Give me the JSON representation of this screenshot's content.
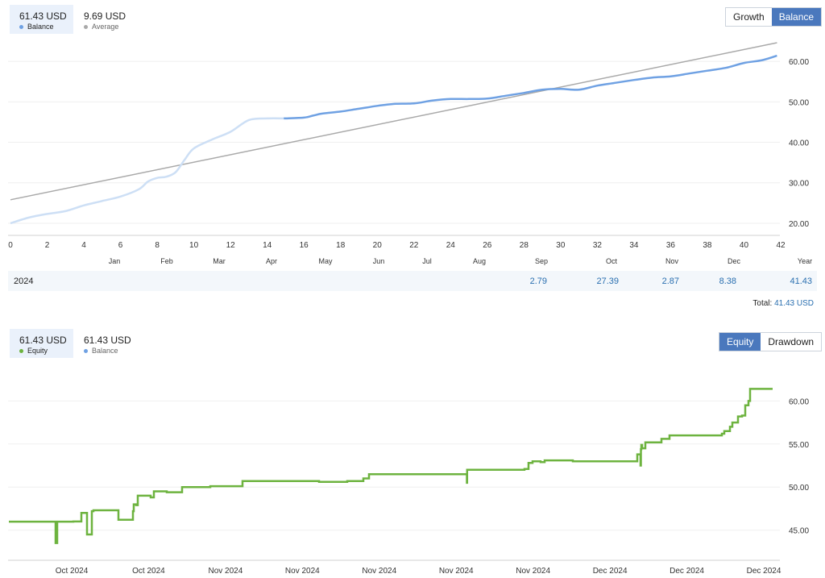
{
  "top_panel": {
    "legend": [
      {
        "value": "61.43 USD",
        "label": "Balance",
        "color": "#6fa1e3",
        "active": true
      },
      {
        "value": "9.69 USD",
        "label": "Average",
        "color": "#a9a9a9",
        "active": false
      }
    ],
    "toggle": [
      {
        "label": "Growth",
        "active": false
      },
      {
        "label": "Balance",
        "active": true
      }
    ]
  },
  "monthly_table": {
    "year_header": "Year",
    "year": "2024",
    "months": [
      "Jan",
      "Feb",
      "Mar",
      "Apr",
      "May",
      "Jun",
      "Jul",
      "Aug",
      "Sep",
      "Oct",
      "Nov",
      "Dec"
    ],
    "values": [
      "",
      "",
      "",
      "",
      "",
      "",
      "",
      "",
      "2.79",
      "27.39",
      "2.87",
      "8.38"
    ],
    "year_total": "41.43",
    "total_label": "Total:",
    "total_value": "41.43 USD"
  },
  "bottom_panel": {
    "legend": [
      {
        "value": "61.43 USD",
        "label": "Equity",
        "color": "#6db33f",
        "active": true
      },
      {
        "value": "61.43 USD",
        "label": "Balance",
        "color": "#6fa1e3",
        "active": false
      }
    ],
    "toggle": [
      {
        "label": "Equity",
        "active": true
      },
      {
        "label": "Drawdown",
        "active": false
      }
    ]
  },
  "chart_data": [
    {
      "type": "line",
      "title": "",
      "xlabel": "",
      "ylabel": "",
      "xlim": [
        0,
        42
      ],
      "ylim": [
        17,
        66
      ],
      "x_ticks": [
        0,
        2,
        4,
        6,
        8,
        10,
        12,
        14,
        16,
        18,
        20,
        22,
        24,
        26,
        28,
        30,
        32,
        34,
        36,
        38,
        40,
        42
      ],
      "y_ticks": [
        "20.00",
        "30.00",
        "40.00",
        "50.00",
        "60.00"
      ],
      "grid": "horizontal",
      "series": [
        {
          "name": "Balance",
          "color": "#6fa1e3",
          "history_color": "#cddff5",
          "history_until_x": 14.9,
          "x": [
            0,
            1,
            2,
            3,
            4,
            5,
            6,
            7,
            7.5,
            8,
            8.5,
            9,
            9.5,
            10,
            11,
            12,
            13,
            14,
            14.9,
            16,
            16.5,
            17,
            18,
            19,
            20,
            21,
            22,
            23,
            24,
            25,
            26,
            27,
            28,
            29,
            30,
            31,
            32,
            33,
            34,
            35,
            36,
            37,
            38,
            39,
            40,
            41,
            41.8
          ],
          "y": [
            20,
            21.4,
            22.3,
            23,
            24.4,
            25.5,
            26.6,
            28.4,
            30.3,
            31.2,
            31.5,
            32.6,
            35.7,
            38.5,
            40.7,
            42.6,
            45.5,
            45.9,
            45.9,
            46.1,
            46.6,
            47.1,
            47.6,
            48.3,
            49,
            49.5,
            49.6,
            50.3,
            50.7,
            50.7,
            50.8,
            51.5,
            52.2,
            53,
            53.2,
            53,
            54,
            54.7,
            55.4,
            56,
            56.3,
            57,
            57.7,
            58.4,
            59.6,
            60.3,
            61.4
          ]
        },
        {
          "name": "Average",
          "color": "#a9a9a9",
          "x": [
            0,
            41.8
          ],
          "y": [
            25.8,
            64.6
          ]
        }
      ]
    },
    {
      "type": "line",
      "title": "",
      "xlabel": "",
      "ylabel": "",
      "ylim": [
        41.5,
        63.5
      ],
      "y_ticks": [
        "45.00",
        "50.00",
        "55.00",
        "60.00"
      ],
      "x_tick_labels": [
        "Oct 2024",
        "Oct 2024",
        "Nov 2024",
        "Nov 2024",
        "Nov 2024",
        "Nov 2024",
        "Nov 2024",
        "Dec 2024",
        "Dec 2024",
        "Dec 2024"
      ],
      "grid": "horizontal",
      "series": [
        {
          "name": "Equity",
          "color": "#6db33f",
          "x": [
            0,
            56,
            58,
            60,
            75,
            80,
            88,
            90,
            95,
            97,
            103,
            105,
            115,
            120,
            135,
            136,
            154,
            155,
            158,
            160,
            175,
            176,
            180,
            185,
            192,
            196,
            205,
            215,
            250,
            255,
            260,
            285,
            290,
            340,
            350,
            380,
            385,
            420,
            425,
            440,
            447,
            455,
            460,
            475,
            500,
            505,
            508,
            512,
            550,
            568,
            568.5,
            568.8,
            585,
            588,
            590,
            600,
            640,
            645,
            650,
            660,
            665,
            670,
            700,
            750,
            780,
            782,
            784,
            784.5,
            785,
            786,
            790,
            800,
            810,
            820,
            850,
            862,
            865,
            870,
            880,
            885,
            888,
            890,
            895,
            898,
            905,
            910,
            914,
            918,
            920,
            925,
            940,
            948
          ],
          "y": [
            45.98,
            45.98,
            43.5,
            45.98,
            45.98,
            46,
            46,
            47,
            47,
            44.5,
            47.2,
            47.3,
            47.3,
            47.3,
            47.3,
            46.2,
            47.2,
            48,
            47.9,
            49,
            49,
            48.8,
            49.5,
            49.5,
            49.5,
            49.4,
            49.4,
            50,
            50.1,
            50.1,
            50.1,
            50.1,
            50.7,
            50.7,
            50.7,
            50.7,
            50.6,
            50.7,
            50.7,
            51,
            51.5,
            51.5,
            51.5,
            51.5,
            51.5,
            51.5,
            51.5,
            51.5,
            51.5,
            51.5,
            50.5,
            52,
            52,
            52,
            52,
            52,
            52.1,
            52.8,
            53,
            52.9,
            53.1,
            53.1,
            53,
            53,
            53.8,
            53.8,
            52.5,
            54.4,
            54.9,
            54.5,
            55.2,
            55.2,
            55.6,
            56,
            56,
            56,
            56,
            56,
            56,
            56.2,
            56.5,
            56.5,
            57,
            57.5,
            58.2,
            58.3,
            59.5,
            60,
            61.4,
            61.4,
            61.4,
            61.4
          ]
        }
      ]
    }
  ]
}
